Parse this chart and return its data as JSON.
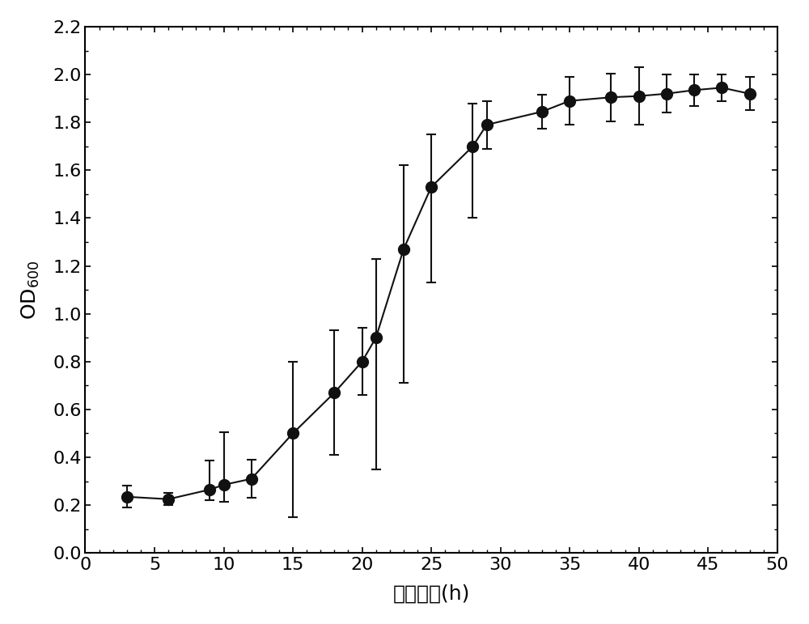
{
  "x": [
    3,
    6,
    9,
    10,
    12,
    15,
    18,
    20,
    21,
    23,
    25,
    28,
    29,
    33,
    35,
    38,
    40,
    42,
    44,
    46,
    48
  ],
  "y": [
    0.235,
    0.225,
    0.265,
    0.285,
    0.31,
    0.5,
    0.67,
    0.8,
    0.9,
    1.27,
    1.53,
    1.7,
    1.79,
    1.845,
    1.89,
    1.905,
    1.91,
    1.92,
    1.935,
    1.945,
    1.92
  ],
  "yerr_upper": [
    0.045,
    0.025,
    0.12,
    0.22,
    0.08,
    0.3,
    0.26,
    0.14,
    0.33,
    0.35,
    0.22,
    0.18,
    0.1,
    0.07,
    0.1,
    0.1,
    0.12,
    0.08,
    0.065,
    0.055,
    0.07
  ],
  "yerr_lower": [
    0.045,
    0.025,
    0.045,
    0.07,
    0.08,
    0.35,
    0.26,
    0.14,
    0.55,
    0.56,
    0.4,
    0.3,
    0.1,
    0.07,
    0.1,
    0.1,
    0.12,
    0.08,
    0.065,
    0.055,
    0.07
  ],
  "xlabel": "反应时间(h)",
  "ylabel_main": "OD",
  "ylabel_sub": "600",
  "xlim": [
    2,
    50
  ],
  "ylim": [
    0.0,
    2.2
  ],
  "xticks": [
    0,
    5,
    10,
    15,
    20,
    25,
    30,
    35,
    40,
    45,
    50
  ],
  "yticks": [
    0.0,
    0.2,
    0.4,
    0.6,
    0.8,
    1.0,
    1.2,
    1.4,
    1.6,
    1.8,
    2.0,
    2.2
  ],
  "background_color": "#ffffff",
  "line_color": "#111111",
  "marker_color": "#111111",
  "marker_size": 10,
  "line_width": 1.5
}
